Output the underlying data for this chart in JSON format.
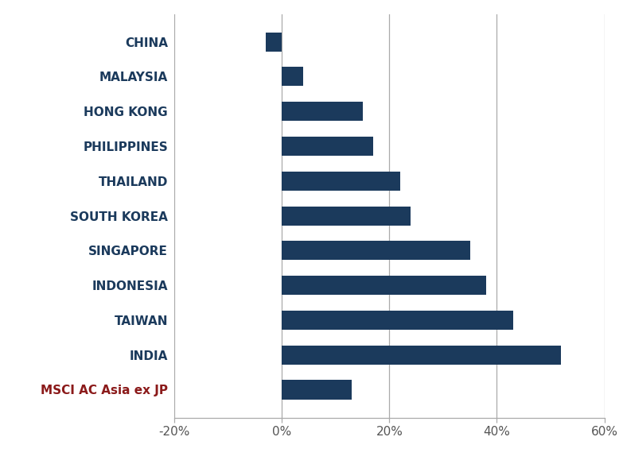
{
  "categories": [
    "CHINA",
    "MALAYSIA",
    "HONG KONG",
    "PHILIPPINES",
    "THAILAND",
    "SOUTH KOREA",
    "SINGAPORE",
    "INDONESIA",
    "TAIWAN",
    "INDIA",
    "MSCI AC Asia ex JP"
  ],
  "values": [
    -3,
    4,
    15,
    17,
    22,
    24,
    35,
    38,
    43,
    52,
    13
  ],
  "bar_color": "#1b3a5c",
  "background_color": "#ffffff",
  "xlim": [
    -20,
    60
  ],
  "xticks": [
    -20,
    0,
    20,
    40,
    60
  ],
  "xtick_labels": [
    "-20%",
    "0%",
    "20%",
    "40%",
    "60%"
  ],
  "msci_label_color": "#8b1a1a",
  "regular_label_color": "#1b3a5c",
  "grid_color": "#aaaaaa",
  "bar_height": 0.55,
  "label_fontsize": 11,
  "tick_fontsize": 11
}
